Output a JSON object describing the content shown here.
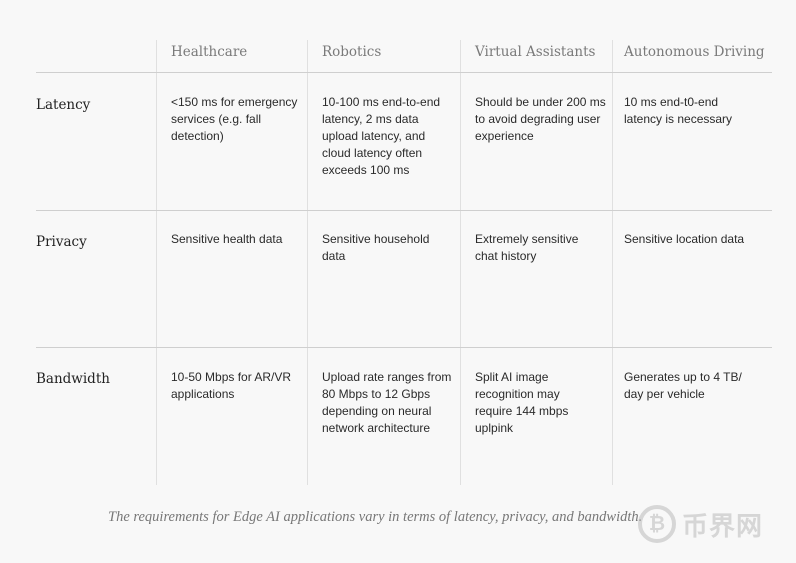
{
  "table": {
    "columns": [
      "Healthcare",
      "Robotics",
      "Virtual Assistants",
      "Autonomous Driving"
    ],
    "rows": [
      {
        "label": "Latency",
        "cells": [
          "<150 ms for emergency services (e.g. fall detection)",
          "10-100 ms end-to-end latency, 2 ms data upload latency, and cloud latency often exceeds 100 ms",
          "Should be under 200 ms to avoid degrading user experience",
          "10 ms end-t0-end latency is necessary"
        ]
      },
      {
        "label": "Privacy",
        "cells": [
          "Sensitive health data",
          "Sensitive household data",
          "Extremely sensitive chat history",
          "Sensitive location data"
        ]
      },
      {
        "label": "Bandwidth",
        "cells": [
          "10-50 Mbps for AR/VR applications",
          "Upload rate ranges from 80 Mbps to 12 Gbps depending on neural network architecture",
          "Split AI image recognition may require 144 mbps uplpink",
          "Generates up to 4 TB/ day per vehicle"
        ]
      }
    ]
  },
  "caption": "The requirements for Edge AI applications vary in terms of latency, privacy, and bandwidth.",
  "watermark": {
    "text": "币界网",
    "icon": "bitcoin-coin-icon"
  }
}
